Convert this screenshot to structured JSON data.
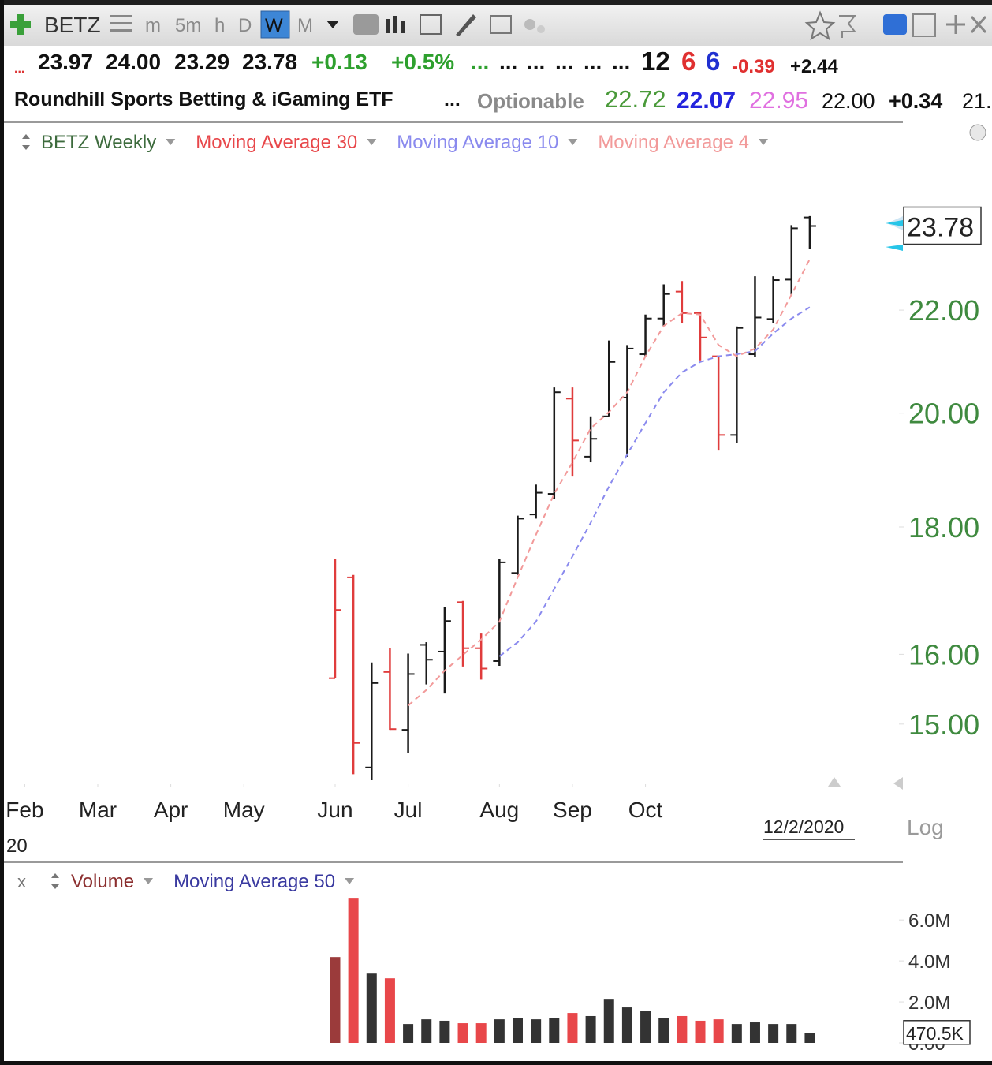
{
  "toolbar": {
    "symbol": "BETZ",
    "periods": [
      "m",
      "5m",
      "h",
      "D",
      "W",
      "M"
    ]
  },
  "quote": {
    "row1": [
      "...",
      "23.97",
      "24.00",
      "23.29",
      "23.78",
      "+0.13",
      "+0.5%",
      "...",
      "...",
      "...",
      "...",
      "...",
      "...",
      "12",
      "6",
      "6",
      "-0.39",
      "+2.44"
    ],
    "row2": [
      "Roundhill Sports Betting & iGaming ETF",
      "...",
      "Optionable",
      "22.72",
      "22.07",
      "22.95",
      "22.00",
      "+0.34",
      "21."
    ]
  },
  "chart_data": [
    {
      "type": "ohlc",
      "log": true,
      "ylim": [
        14.23,
        25.33
      ],
      "yticks": [
        {
          "value": 15,
          "label": "15.00"
        },
        {
          "value": 16,
          "label": "16.00"
        },
        {
          "value": 18,
          "label": "18.00"
        },
        {
          "value": 20,
          "label": "20.00"
        },
        {
          "value": 22,
          "label": "22.00"
        }
      ],
      "xlim": [
        -18.14,
        31.1
      ],
      "xticks": [
        {
          "value": -17,
          "label": "Feb"
        },
        {
          "value": -13,
          "label": "Mar"
        },
        {
          "value": -9,
          "label": "Apr"
        },
        {
          "value": -5,
          "label": "May"
        },
        {
          "value": 0,
          "label": "Jun"
        },
        {
          "value": 4,
          "label": "Jul"
        },
        {
          "value": 9,
          "label": "Aug"
        },
        {
          "value": 13,
          "label": "Sep"
        },
        {
          "value": 17,
          "label": "Oct"
        }
      ],
      "year_label": "20",
      "date_label": "12/2/2020",
      "scale_label": "Log",
      "series": [
        {
          "name": "BETZ Weekly",
          "color": "#3d6b3d",
          "open": [
            15.65,
            17.18,
            14.41,
            15.74,
            14.92,
            16.14,
            16.04,
            16.79,
            16.09,
            15.9,
            17.25,
            18.21,
            18.56,
            20.27,
            19.21,
            19.94,
            20.29,
            21.12,
            21.83,
            22.38,
            21.94,
            21.08,
            19.6,
            21.12,
            21.82,
            22.63,
            23.97
          ],
          "high": [
            17.47,
            17.22,
            15.88,
            16.09,
            16.01,
            16.18,
            16.72,
            16.81,
            16.31,
            17.47,
            18.19,
            18.72,
            20.48,
            20.48,
            19.94,
            21.39,
            21.3,
            21.91,
            22.53,
            22.6,
            21.97,
            21.09,
            21.67,
            22.7,
            22.7,
            23.8,
            24.0
          ],
          "low": [
            15.65,
            14.32,
            14.24,
            14.92,
            14.6,
            15.56,
            15.43,
            15.82,
            15.63,
            15.83,
            17.22,
            18.14,
            18.47,
            18.86,
            19.11,
            19.94,
            19.21,
            21.08,
            21.68,
            21.73,
            21.0,
            19.32,
            19.46,
            21.06,
            21.73,
            22.3,
            23.29
          ],
          "close": [
            16.67,
            14.74,
            15.58,
            14.93,
            15.71,
            15.92,
            16.5,
            16.09,
            15.79,
            17.42,
            18.14,
            18.58,
            20.39,
            19.5,
            19.53,
            20.97,
            21.23,
            21.83,
            22.33,
            21.94,
            21.45,
            19.6,
            21.64,
            21.85,
            22.62,
            23.73,
            23.78
          ],
          "bar_colors": [
            "#e03c3c",
            "#e03c3c",
            "#1a1a1a",
            "#e03c3c",
            "#1a1a1a",
            "#1a1a1a",
            "#1a1a1a",
            "#e03c3c",
            "#e03c3c",
            "#1a1a1a",
            "#1a1a1a",
            "#1a1a1a",
            "#1a1a1a",
            "#e03c3c",
            "#1a1a1a",
            "#1a1a1a",
            "#1a1a1a",
            "#1a1a1a",
            "#1a1a1a",
            "#e03c3c",
            "#e03c3c",
            "#e03c3c",
            "#1a1a1a",
            "#1a1a1a",
            "#1a1a1a",
            "#1a1a1a",
            "#1a1a1a"
          ]
        },
        {
          "name": "Moving Average 30",
          "color": "#e8474a"
        },
        {
          "name": "Moving Average 10",
          "color": "#8a8aee",
          "values": [
            null,
            null,
            null,
            null,
            null,
            null,
            null,
            null,
            null,
            15.97,
            16.18,
            16.49,
            17.0,
            17.52,
            18.07,
            18.69,
            19.25,
            19.82,
            20.39,
            20.77,
            20.97,
            21.08,
            21.12,
            21.18,
            21.53,
            21.83,
            22.06
          ]
        },
        {
          "name": "Moving Average 4",
          "color": "#f29a9a",
          "values": [
            null,
            null,
            null,
            null,
            15.26,
            15.48,
            15.76,
            15.99,
            16.22,
            16.49,
            17.18,
            17.87,
            18.56,
            19.11,
            19.72,
            20.02,
            20.39,
            21.08,
            21.68,
            21.94,
            21.91,
            21.3,
            21.08,
            21.23,
            21.61,
            22.32,
            23.06
          ]
        }
      ]
    },
    {
      "type": "bar",
      "ylim": [
        0,
        7200000
      ],
      "yticks": [
        {
          "value": 0,
          "label": "0.00"
        },
        {
          "value": 2000000,
          "label": "2.0M"
        },
        {
          "value": 4000000,
          "label": "4.0M"
        },
        {
          "value": 6000000,
          "label": "6.0M"
        }
      ],
      "series": [
        {
          "name": "Volume",
          "color": "#8b2e2e",
          "values": [
            4190000,
            7080000,
            3380000,
            3150000,
            920000,
            1150000,
            1080000,
            960000,
            960000,
            1150000,
            1230000,
            1150000,
            1230000,
            1460000,
            1310000,
            2150000,
            1730000,
            1540000,
            1230000,
            1310000,
            1080000,
            1150000,
            920000,
            1000000,
            920000,
            920000,
            470500
          ],
          "colors": [
            "#9b3b3b",
            "#e8474a",
            "#333333",
            "#e8474a",
            "#333333",
            "#333333",
            "#333333",
            "#e8474a",
            "#e8474a",
            "#333333",
            "#333333",
            "#333333",
            "#333333",
            "#e8474a",
            "#333333",
            "#333333",
            "#333333",
            "#333333",
            "#333333",
            "#e8474a",
            "#e8474a",
            "#e8474a",
            "#333333",
            "#333333",
            "#333333",
            "#333333",
            "#333333"
          ],
          "value_labels": [
            null,
            null,
            null,
            null,
            null,
            null,
            null,
            null,
            null,
            null,
            null,
            null,
            null,
            null,
            null,
            null,
            null,
            null,
            null,
            null,
            null,
            null,
            null,
            null,
            null,
            null,
            "470.5K"
          ]
        },
        {
          "name": "Moving Average 50",
          "color": "#3a3aa0"
        }
      ]
    }
  ]
}
